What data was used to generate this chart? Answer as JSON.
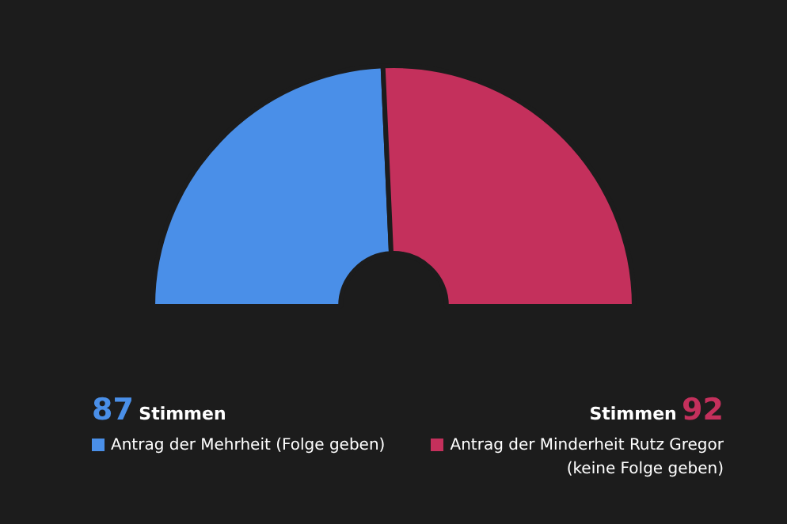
{
  "chart_data": {
    "type": "donut",
    "categories": [
      "Antrag der Mehrheit (Folge geben)",
      "Antrag der Minderheit Rutz Gregor (keine Folge geben)"
    ],
    "values": [
      87,
      92
    ],
    "colors": [
      "#4a8fe8",
      "#c4305c"
    ],
    "data_labels": true,
    "legend": "bottom",
    "annotations": [
      "Stimmen",
      "Stimmen"
    ]
  }
}
